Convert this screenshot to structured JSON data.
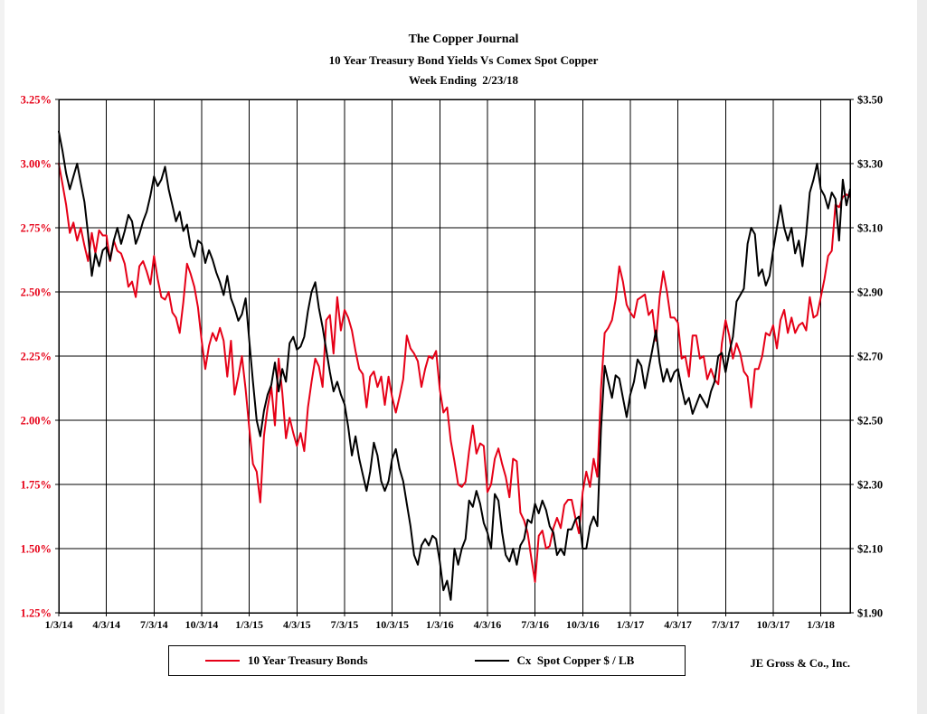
{
  "window": {
    "background": "#ffffff",
    "edge_color": "#ececec"
  },
  "header": {
    "title": "The Copper Journal",
    "subtitle": "10 Year Treasury Bond Yields Vs Comex Spot Copper",
    "week_ending": "Week Ending  2/23/18"
  },
  "legend": {
    "treasury_label": "10 Year Treasury Bonds",
    "copper_label": "Cx  Spot Copper $ / LB"
  },
  "footer": {
    "company": "JE Gross & Co., Inc."
  },
  "chart_data": {
    "type": "line",
    "title": "The Copper Journal",
    "subtitle": "10 Year Treasury Bond Yields Vs Comex Spot Copper",
    "period": "Week Ending 2/23/18",
    "x_unit": "weekly",
    "x_range": [
      "1/3/14",
      "2/23/18"
    ],
    "grid": true,
    "legend_position": "bottom",
    "weeks_total": 216,
    "x_tick_labels": [
      "1/3/14",
      "4/3/14",
      "7/3/14",
      "10/3/14",
      "1/3/15",
      "4/3/15",
      "7/3/15",
      "10/3/15",
      "1/3/16",
      "4/3/16",
      "7/3/16",
      "10/3/16",
      "1/3/17",
      "4/3/17",
      "7/3/17",
      "10/3/17",
      "1/3/18"
    ],
    "x_tick_positions_weeks": [
      0,
      13,
      26,
      39,
      52,
      65,
      78,
      91,
      104,
      117,
      130,
      143,
      156,
      169,
      182,
      195,
      208
    ],
    "left_axis": {
      "ticks": [
        "3.25%",
        "3.00%",
        "2.75%",
        "2.50%",
        "2.25%",
        "2.00%",
        "1.75%",
        "1.50%",
        "1.25%"
      ],
      "min": 1.25,
      "max": 3.25,
      "format": "percent",
      "color": "#e60017"
    },
    "right_axis": {
      "ticks": [
        "$3.50",
        "$3.30",
        "$3.10",
        "$2.90",
        "$2.70",
        "$2.50",
        "$2.30",
        "$2.10",
        "$1.90"
      ],
      "min": 1.9,
      "max": 3.5,
      "format": "dollars",
      "color": "#000000"
    },
    "series": [
      {
        "name": "10 Year Treasury Bonds",
        "axis": "left",
        "color": "#e60017",
        "values": [
          3.0,
          2.92,
          2.84,
          2.73,
          2.77,
          2.7,
          2.75,
          2.68,
          2.62,
          2.73,
          2.65,
          2.74,
          2.72,
          2.72,
          2.62,
          2.7,
          2.66,
          2.65,
          2.61,
          2.52,
          2.54,
          2.48,
          2.6,
          2.62,
          2.58,
          2.53,
          2.64,
          2.55,
          2.48,
          2.47,
          2.5,
          2.42,
          2.4,
          2.34,
          2.46,
          2.61,
          2.57,
          2.52,
          2.44,
          2.31,
          2.2,
          2.29,
          2.34,
          2.31,
          2.36,
          2.31,
          2.17,
          2.31,
          2.1,
          2.17,
          2.25,
          2.12,
          1.97,
          1.83,
          1.8,
          1.68,
          1.94,
          2.05,
          2.13,
          1.98,
          2.24,
          2.11,
          1.93,
          2.01,
          1.95,
          1.9,
          1.95,
          1.88,
          2.05,
          2.15,
          2.24,
          2.21,
          2.13,
          2.39,
          2.41,
          2.26,
          2.48,
          2.35,
          2.43,
          2.4,
          2.35,
          2.27,
          2.2,
          2.18,
          2.05,
          2.17,
          2.19,
          2.13,
          2.17,
          2.06,
          2.17,
          2.09,
          2.03,
          2.09,
          2.16,
          2.33,
          2.28,
          2.26,
          2.23,
          2.13,
          2.2,
          2.25,
          2.24,
          2.27,
          2.12,
          2.03,
          2.05,
          1.92,
          1.84,
          1.75,
          1.74,
          1.76,
          1.88,
          1.98,
          1.87,
          1.91,
          1.9,
          1.72,
          1.75,
          1.85,
          1.89,
          1.83,
          1.78,
          1.7,
          1.85,
          1.84,
          1.64,
          1.61,
          1.56,
          1.46,
          1.37,
          1.55,
          1.57,
          1.5,
          1.51,
          1.58,
          1.62,
          1.58,
          1.67,
          1.69,
          1.69,
          1.62,
          1.56,
          1.72,
          1.8,
          1.74,
          1.85,
          1.78,
          2.12,
          2.34,
          2.36,
          2.39,
          2.47,
          2.6,
          2.54,
          2.45,
          2.42,
          2.4,
          2.47,
          2.48,
          2.49,
          2.41,
          2.43,
          2.31,
          2.48,
          2.58,
          2.5,
          2.4,
          2.4,
          2.38,
          2.24,
          2.25,
          2.17,
          2.33,
          2.33,
          2.24,
          2.25,
          2.16,
          2.2,
          2.16,
          2.14,
          2.3,
          2.39,
          2.33,
          2.24,
          2.3,
          2.26,
          2.19,
          2.17,
          2.05,
          2.2,
          2.2,
          2.25,
          2.34,
          2.33,
          2.37,
          2.28,
          2.39,
          2.43,
          2.34,
          2.4,
          2.34,
          2.37,
          2.38,
          2.35,
          2.48,
          2.4,
          2.41,
          2.48,
          2.55,
          2.64,
          2.66,
          2.84,
          2.83,
          2.87,
          2.88,
          2.87
        ]
      },
      {
        "name": "Cx Spot Copper $ / LB",
        "axis": "right",
        "color": "#000000",
        "values": [
          3.4,
          3.34,
          3.27,
          3.22,
          3.26,
          3.3,
          3.24,
          3.18,
          3.08,
          2.95,
          3.02,
          2.98,
          3.03,
          3.04,
          3.0,
          3.06,
          3.1,
          3.05,
          3.09,
          3.14,
          3.12,
          3.05,
          3.08,
          3.12,
          3.15,
          3.2,
          3.26,
          3.23,
          3.25,
          3.29,
          3.22,
          3.17,
          3.12,
          3.15,
          3.09,
          3.11,
          3.04,
          3.01,
          3.06,
          3.05,
          2.99,
          3.03,
          3.0,
          2.96,
          2.93,
          2.89,
          2.95,
          2.88,
          2.85,
          2.81,
          2.83,
          2.88,
          2.75,
          2.62,
          2.5,
          2.45,
          2.53,
          2.58,
          2.61,
          2.68,
          2.59,
          2.66,
          2.62,
          2.74,
          2.76,
          2.72,
          2.73,
          2.76,
          2.84,
          2.9,
          2.93,
          2.85,
          2.79,
          2.72,
          2.65,
          2.59,
          2.62,
          2.58,
          2.55,
          2.48,
          2.39,
          2.45,
          2.38,
          2.33,
          2.28,
          2.34,
          2.43,
          2.39,
          2.31,
          2.28,
          2.31,
          2.38,
          2.41,
          2.35,
          2.31,
          2.24,
          2.17,
          2.08,
          2.05,
          2.11,
          2.13,
          2.11,
          2.14,
          2.13,
          2.06,
          1.97,
          2.0,
          1.94,
          2.1,
          2.05,
          2.1,
          2.13,
          2.25,
          2.23,
          2.28,
          2.24,
          2.18,
          2.15,
          2.1,
          2.27,
          2.25,
          2.15,
          2.08,
          2.06,
          2.1,
          2.05,
          2.11,
          2.13,
          2.19,
          2.18,
          2.24,
          2.21,
          2.25,
          2.22,
          2.17,
          2.15,
          2.08,
          2.1,
          2.08,
          2.16,
          2.16,
          2.19,
          2.2,
          2.1,
          2.1,
          2.17,
          2.2,
          2.17,
          2.47,
          2.67,
          2.62,
          2.57,
          2.64,
          2.63,
          2.57,
          2.51,
          2.58,
          2.62,
          2.69,
          2.67,
          2.6,
          2.66,
          2.72,
          2.78,
          2.68,
          2.62,
          2.66,
          2.62,
          2.65,
          2.66,
          2.6,
          2.55,
          2.57,
          2.52,
          2.55,
          2.58,
          2.56,
          2.54,
          2.59,
          2.62,
          2.7,
          2.71,
          2.65,
          2.71,
          2.76,
          2.87,
          2.89,
          2.91,
          3.05,
          3.1,
          3.08,
          2.95,
          2.97,
          2.92,
          2.95,
          3.03,
          3.1,
          3.17,
          3.1,
          3.06,
          3.1,
          3.02,
          3.06,
          2.98,
          3.08,
          3.21,
          3.25,
          3.3,
          3.22,
          3.2,
          3.16,
          3.21,
          3.19,
          3.06,
          3.25,
          3.17,
          3.22
        ]
      }
    ]
  }
}
